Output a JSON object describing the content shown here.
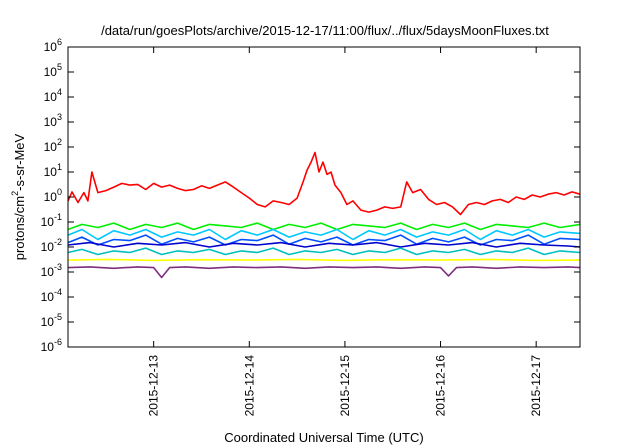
{
  "chart_data": {
    "type": "line",
    "title": "/data/run/goesPlots/archive/2015-12-17/11:00/flux/../flux/5daysMoonFluxes.txt",
    "xlabel": "Coordinated Universal Time (UTC)",
    "ylabel": {
      "base": "protons/cm",
      "sup": "2",
      "rest": "-s-sr-MeV"
    },
    "yscale": "log",
    "ylim": [
      1e-06,
      1000000.0
    ],
    "y_ticks": [
      {
        "base": "10",
        "exp": "-6",
        "value": 1e-06
      },
      {
        "base": "10",
        "exp": "-5",
        "value": 1e-05
      },
      {
        "base": "10",
        "exp": "-4",
        "value": 0.0001
      },
      {
        "base": "10",
        "exp": "-3",
        "value": 0.001
      },
      {
        "base": "10",
        "exp": "-2",
        "value": 0.01
      },
      {
        "base": "10",
        "exp": "-1",
        "value": 0.1
      },
      {
        "base": "10",
        "exp": "0",
        "value": 1
      },
      {
        "base": "10",
        "exp": "1",
        "value": 10
      },
      {
        "base": "10",
        "exp": "2",
        "value": 100
      },
      {
        "base": "10",
        "exp": "3",
        "value": 1000
      },
      {
        "base": "10",
        "exp": "4",
        "value": 10000
      },
      {
        "base": "10",
        "exp": "5",
        "value": 100000
      },
      {
        "base": "10",
        "exp": "6",
        "value": 1000000
      }
    ],
    "xlim": [
      "2015-12-12T02:30",
      "2015-12-17T11:00"
    ],
    "x_ticks": [
      {
        "label": "2015-12-13",
        "value": "2015-12-13T00:00"
      },
      {
        "label": "2015-12-14",
        "value": "2015-12-14T00:00"
      },
      {
        "label": "2015-12-15",
        "value": "2015-12-15T00:00"
      },
      {
        "label": "2015-12-16",
        "value": "2015-12-16T00:00"
      },
      {
        "label": "2015-12-17",
        "value": "2015-12-17T00:00"
      }
    ],
    "grid": false,
    "legend": "none",
    "series": [
      {
        "color": "#ff0000",
        "x": [
          "2015-12-12T02:30",
          "2015-12-12T03:30",
          "2015-12-12T05:00",
          "2015-12-12T06:30",
          "2015-12-12T07:30",
          "2015-12-12T08:30",
          "2015-12-12T10:00",
          "2015-12-12T12:00",
          "2015-12-12T14:00",
          "2015-12-12T16:00",
          "2015-12-12T18:00",
          "2015-12-12T20:00",
          "2015-12-12T22:00",
          "2015-12-13T00:00",
          "2015-12-13T02:00",
          "2015-12-13T04:00",
          "2015-12-13T06:00",
          "2015-12-13T08:00",
          "2015-12-13T10:00",
          "2015-12-13T12:00",
          "2015-12-13T14:00",
          "2015-12-13T16:00",
          "2015-12-13T18:00",
          "2015-12-13T20:00",
          "2015-12-13T22:00",
          "2015-12-14T00:00",
          "2015-12-14T02:00",
          "2015-12-14T04:00",
          "2015-12-14T06:00",
          "2015-12-14T08:00",
          "2015-12-14T10:00",
          "2015-12-14T12:00",
          "2015-12-14T13:30",
          "2015-12-14T14:30",
          "2015-12-14T15:30",
          "2015-12-14T16:30",
          "2015-12-14T17:30",
          "2015-12-14T18:30",
          "2015-12-14T19:30",
          "2015-12-14T20:30",
          "2015-12-14T21:30",
          "2015-12-14T23:00",
          "2015-12-15T00:30",
          "2015-12-15T02:00",
          "2015-12-15T04:00",
          "2015-12-15T06:00",
          "2015-12-15T08:00",
          "2015-12-15T10:00",
          "2015-12-15T12:00",
          "2015-12-15T14:00",
          "2015-12-15T15:30",
          "2015-12-15T17:00",
          "2015-12-15T19:00",
          "2015-12-15T21:00",
          "2015-12-15T23:00",
          "2015-12-16T01:00",
          "2015-12-16T03:00",
          "2015-12-16T05:00",
          "2015-12-16T07:00",
          "2015-12-16T09:00",
          "2015-12-16T11:00",
          "2015-12-16T13:00",
          "2015-12-16T15:00",
          "2015-12-16T17:00",
          "2015-12-16T19:00",
          "2015-12-16T21:00",
          "2015-12-16T23:00",
          "2015-12-17T01:00",
          "2015-12-17T03:00",
          "2015-12-17T05:00",
          "2015-12-17T07:00",
          "2015-12-17T09:00",
          "2015-12-17T11:00"
        ],
        "y": [
          0.7,
          1.6,
          0.6,
          1.5,
          0.7,
          10,
          1.5,
          1.8,
          2.5,
          3.5,
          3.0,
          3.2,
          2.0,
          3.5,
          2.5,
          3.0,
          2.2,
          1.8,
          2.0,
          2.8,
          2.2,
          3.0,
          4.0,
          2.5,
          1.5,
          0.9,
          0.5,
          0.4,
          0.7,
          0.6,
          0.5,
          0.9,
          4,
          12,
          25,
          60,
          10,
          25,
          8,
          10,
          3,
          1.5,
          0.5,
          0.7,
          0.3,
          0.25,
          0.3,
          0.4,
          0.35,
          0.4,
          4,
          1.5,
          2,
          0.8,
          0.5,
          0.6,
          0.4,
          0.2,
          0.5,
          0.6,
          0.5,
          0.7,
          0.8,
          0.6,
          1.0,
          0.8,
          1.2,
          1.0,
          1.3,
          1.5,
          1.2,
          1.6,
          1.3
        ]
      },
      {
        "color": "#00ee00",
        "x": [
          "2015-12-12T02:30",
          "2015-12-12T06:00",
          "2015-12-12T10:00",
          "2015-12-12T14:00",
          "2015-12-12T18:00",
          "2015-12-12T22:00",
          "2015-12-13T02:00",
          "2015-12-13T06:00",
          "2015-12-13T10:00",
          "2015-12-13T14:00",
          "2015-12-13T18:00",
          "2015-12-13T22:00",
          "2015-12-14T02:00",
          "2015-12-14T06:00",
          "2015-12-14T10:00",
          "2015-12-14T14:00",
          "2015-12-14T18:00",
          "2015-12-14T22:00",
          "2015-12-15T02:00",
          "2015-12-15T06:00",
          "2015-12-15T10:00",
          "2015-12-15T14:00",
          "2015-12-15T18:00",
          "2015-12-15T22:00",
          "2015-12-16T02:00",
          "2015-12-16T06:00",
          "2015-12-16T10:00",
          "2015-12-16T14:00",
          "2015-12-16T18:00",
          "2015-12-16T22:00",
          "2015-12-17T02:00",
          "2015-12-17T06:00",
          "2015-12-17T11:00"
        ],
        "y": [
          0.05,
          0.08,
          0.06,
          0.09,
          0.05,
          0.08,
          0.06,
          0.09,
          0.05,
          0.08,
          0.07,
          0.06,
          0.09,
          0.05,
          0.08,
          0.06,
          0.09,
          0.05,
          0.08,
          0.07,
          0.06,
          0.09,
          0.05,
          0.08,
          0.06,
          0.09,
          0.05,
          0.08,
          0.07,
          0.06,
          0.09,
          0.06,
          0.08
        ]
      },
      {
        "color": "#00c8ff",
        "x": [
          "2015-12-12T02:30",
          "2015-12-12T06:00",
          "2015-12-12T10:00",
          "2015-12-12T14:00",
          "2015-12-12T18:00",
          "2015-12-12T22:00",
          "2015-12-13T02:00",
          "2015-12-13T06:00",
          "2015-12-13T10:00",
          "2015-12-13T14:00",
          "2015-12-13T18:00",
          "2015-12-13T22:00",
          "2015-12-14T02:00",
          "2015-12-14T06:00",
          "2015-12-14T10:00",
          "2015-12-14T14:00",
          "2015-12-14T18:00",
          "2015-12-14T22:00",
          "2015-12-15T02:00",
          "2015-12-15T06:00",
          "2015-12-15T10:00",
          "2015-12-15T14:00",
          "2015-12-15T18:00",
          "2015-12-15T22:00",
          "2015-12-16T02:00",
          "2015-12-16T06:00",
          "2015-12-16T10:00",
          "2015-12-16T14:00",
          "2015-12-16T18:00",
          "2015-12-16T22:00",
          "2015-12-17T02:00",
          "2015-12-17T06:00",
          "2015-12-17T11:00"
        ],
        "y": [
          0.03,
          0.05,
          0.02,
          0.045,
          0.03,
          0.05,
          0.025,
          0.04,
          0.03,
          0.05,
          0.02,
          0.045,
          0.03,
          0.05,
          0.025,
          0.04,
          0.03,
          0.05,
          0.02,
          0.045,
          0.03,
          0.05,
          0.025,
          0.04,
          0.03,
          0.05,
          0.02,
          0.045,
          0.03,
          0.05,
          0.025,
          0.04,
          0.035
        ]
      },
      {
        "color": "#0050ff",
        "x": [
          "2015-12-12T02:30",
          "2015-12-12T06:00",
          "2015-12-12T10:00",
          "2015-12-12T14:00",
          "2015-12-12T18:00",
          "2015-12-12T22:00",
          "2015-12-13T02:00",
          "2015-12-13T06:00",
          "2015-12-13T10:00",
          "2015-12-13T14:00",
          "2015-12-13T18:00",
          "2015-12-13T22:00",
          "2015-12-14T02:00",
          "2015-12-14T06:00",
          "2015-12-14T10:00",
          "2015-12-14T14:00",
          "2015-12-14T18:00",
          "2015-12-14T22:00",
          "2015-12-15T02:00",
          "2015-12-15T06:00",
          "2015-12-15T10:00",
          "2015-12-15T14:00",
          "2015-12-15T18:00",
          "2015-12-15T22:00",
          "2015-12-16T02:00",
          "2015-12-16T06:00",
          "2015-12-16T10:00",
          "2015-12-16T14:00",
          "2015-12-16T18:00",
          "2015-12-16T22:00",
          "2015-12-17T02:00",
          "2015-12-17T06:00",
          "2015-12-17T11:00"
        ],
        "y": [
          0.015,
          0.025,
          0.012,
          0.02,
          0.018,
          0.03,
          0.013,
          0.022,
          0.016,
          0.025,
          0.012,
          0.02,
          0.018,
          0.03,
          0.013,
          0.022,
          0.016,
          0.025,
          0.012,
          0.02,
          0.018,
          0.03,
          0.013,
          0.022,
          0.016,
          0.025,
          0.012,
          0.02,
          0.018,
          0.03,
          0.013,
          0.022,
          0.02
        ]
      },
      {
        "color": "#0000cc",
        "x": [
          "2015-12-12T02:30",
          "2015-12-12T08:00",
          "2015-12-12T14:00",
          "2015-12-12T20:00",
          "2015-12-13T02:00",
          "2015-12-13T08:00",
          "2015-12-13T14:00",
          "2015-12-13T20:00",
          "2015-12-14T02:00",
          "2015-12-14T08:00",
          "2015-12-14T14:00",
          "2015-12-14T20:00",
          "2015-12-15T02:00",
          "2015-12-15T08:00",
          "2015-12-15T14:00",
          "2015-12-15T20:00",
          "2015-12-16T02:00",
          "2015-12-16T08:00",
          "2015-12-16T14:00",
          "2015-12-16T20:00",
          "2015-12-17T02:00",
          "2015-12-17T08:00",
          "2015-12-17T11:00"
        ],
        "y": [
          0.012,
          0.015,
          0.01,
          0.014,
          0.012,
          0.015,
          0.01,
          0.014,
          0.012,
          0.015,
          0.01,
          0.014,
          0.012,
          0.015,
          0.01,
          0.014,
          0.012,
          0.015,
          0.01,
          0.014,
          0.012,
          0.011,
          0.01
        ]
      },
      {
        "color": "#00bfbf",
        "x": [
          "2015-12-12T02:30",
          "2015-12-12T06:00",
          "2015-12-12T10:00",
          "2015-12-12T14:00",
          "2015-12-12T18:00",
          "2015-12-12T22:00",
          "2015-12-13T02:00",
          "2015-12-13T06:00",
          "2015-12-13T10:00",
          "2015-12-13T14:00",
          "2015-12-13T18:00",
          "2015-12-13T22:00",
          "2015-12-14T02:00",
          "2015-12-14T06:00",
          "2015-12-14T10:00",
          "2015-12-14T14:00",
          "2015-12-14T18:00",
          "2015-12-14T22:00",
          "2015-12-15T02:00",
          "2015-12-15T06:00",
          "2015-12-15T10:00",
          "2015-12-15T14:00",
          "2015-12-15T18:00",
          "2015-12-15T22:00",
          "2015-12-16T02:00",
          "2015-12-16T06:00",
          "2015-12-16T10:00",
          "2015-12-16T14:00",
          "2015-12-16T18:00",
          "2015-12-16T22:00",
          "2015-12-17T02:00",
          "2015-12-17T06:00",
          "2015-12-17T11:00"
        ],
        "y": [
          0.006,
          0.008,
          0.005,
          0.007,
          0.006,
          0.009,
          0.005,
          0.007,
          0.006,
          0.008,
          0.005,
          0.007,
          0.006,
          0.009,
          0.005,
          0.007,
          0.006,
          0.008,
          0.005,
          0.007,
          0.006,
          0.009,
          0.005,
          0.007,
          0.006,
          0.008,
          0.005,
          0.007,
          0.006,
          0.009,
          0.005,
          0.007,
          0.006
        ]
      },
      {
        "color": "#ffff00",
        "x": [
          "2015-12-12T02:30",
          "2015-12-12T12:00",
          "2015-12-13T00:00",
          "2015-12-13T12:00",
          "2015-12-14T00:00",
          "2015-12-14T12:00",
          "2015-12-15T00:00",
          "2015-12-15T12:00",
          "2015-12-16T00:00",
          "2015-12-16T12:00",
          "2015-12-17T00:00",
          "2015-12-17T11:00"
        ],
        "y": [
          0.003,
          0.0032,
          0.0029,
          0.0031,
          0.003,
          0.0032,
          0.0029,
          0.0031,
          0.003,
          0.0032,
          0.0029,
          0.003
        ]
      },
      {
        "color": "#7f2f7f",
        "x": [
          "2015-12-12T02:30",
          "2015-12-12T08:00",
          "2015-12-12T14:00",
          "2015-12-12T20:00",
          "2015-12-13T00:00",
          "2015-12-13T02:00",
          "2015-12-13T04:00",
          "2015-12-13T08:00",
          "2015-12-13T14:00",
          "2015-12-13T20:00",
          "2015-12-14T02:00",
          "2015-12-14T08:00",
          "2015-12-14T14:00",
          "2015-12-14T20:00",
          "2015-12-15T02:00",
          "2015-12-15T08:00",
          "2015-12-15T14:00",
          "2015-12-15T20:00",
          "2015-12-16T00:00",
          "2015-12-16T02:00",
          "2015-12-16T04:00",
          "2015-12-16T08:00",
          "2015-12-16T14:00",
          "2015-12-16T20:00",
          "2015-12-17T02:00",
          "2015-12-17T08:00",
          "2015-12-17T11:00"
        ],
        "y": [
          0.0015,
          0.0016,
          0.0014,
          0.0016,
          0.0015,
          0.0006,
          0.0015,
          0.0016,
          0.0014,
          0.0016,
          0.0015,
          0.0016,
          0.0014,
          0.0016,
          0.0015,
          0.0016,
          0.0014,
          0.0016,
          0.0015,
          0.0007,
          0.0015,
          0.0016,
          0.0014,
          0.0016,
          0.0015,
          0.0016,
          0.0015
        ]
      }
    ]
  }
}
